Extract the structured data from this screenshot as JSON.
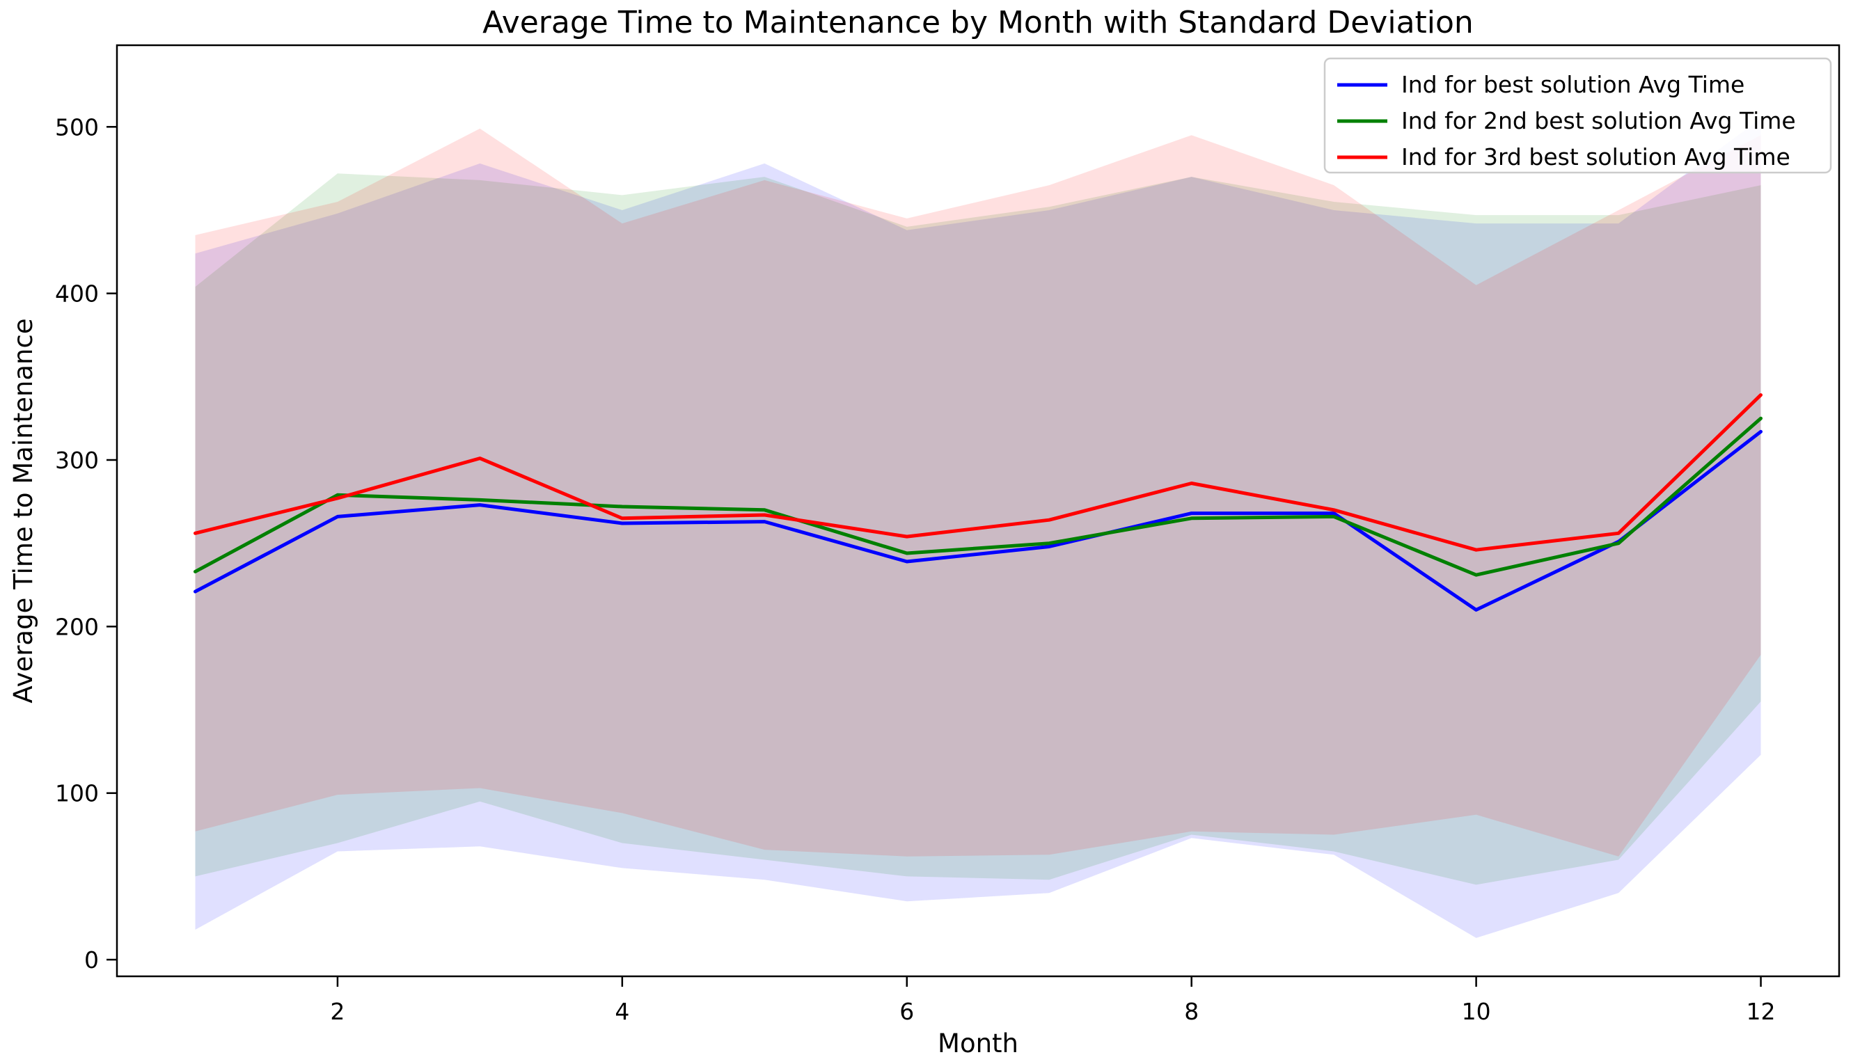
{
  "title": "Average Time to Maintenance by Month with Standard Deviation",
  "chart_data": {
    "type": "line",
    "x": [
      1,
      2,
      3,
      4,
      5,
      6,
      7,
      8,
      9,
      10,
      11,
      12
    ],
    "xlabel": "Month",
    "ylabel": "Average Time to Maintenance",
    "xticks": [
      2,
      4,
      6,
      8,
      10,
      12
    ],
    "yticks": [
      0,
      100,
      200,
      300,
      400,
      500
    ],
    "xlim": [
      0.45,
      12.55
    ],
    "ylim": [
      -10,
      549
    ],
    "grid": false,
    "legend_position": "upper right",
    "axis_color": "#000000",
    "band_alpha": 0.12,
    "series": [
      {
        "name": "Ind for best solution Avg Time",
        "color": "#0000ff",
        "values": [
          221,
          266,
          273,
          262,
          263,
          239,
          248,
          268,
          268,
          210,
          251,
          317
        ],
        "band_upper": [
          424,
          448,
          478,
          450,
          478,
          438,
          450,
          470,
          450,
          442,
          442,
          505
        ],
        "band_lower": [
          18,
          65,
          68,
          55,
          48,
          35,
          40,
          73,
          63,
          13,
          40,
          123
        ]
      },
      {
        "name": "Ind for 2nd best solution Avg Time",
        "color": "#008000",
        "values": [
          233,
          279,
          276,
          272,
          270,
          244,
          250,
          265,
          266,
          231,
          250,
          325
        ],
        "band_upper": [
          404,
          472,
          468,
          459,
          470,
          440,
          452,
          470,
          455,
          447,
          447,
          465
        ],
        "band_lower": [
          50,
          70,
          95,
          70,
          60,
          50,
          48,
          75,
          65,
          45,
          60,
          155
        ]
      },
      {
        "name": "Ind for 3rd best solution Avg Time",
        "color": "#ff0000",
        "values": [
          256,
          277,
          301,
          265,
          267,
          254,
          264,
          286,
          270,
          246,
          256,
          339
        ],
        "band_upper": [
          435,
          455,
          499,
          442,
          468,
          445,
          465,
          495,
          465,
          405,
          450,
          495
        ],
        "band_lower": [
          77,
          99,
          103,
          88,
          66,
          62,
          63,
          77,
          75,
          87,
          62,
          183
        ]
      }
    ]
  }
}
